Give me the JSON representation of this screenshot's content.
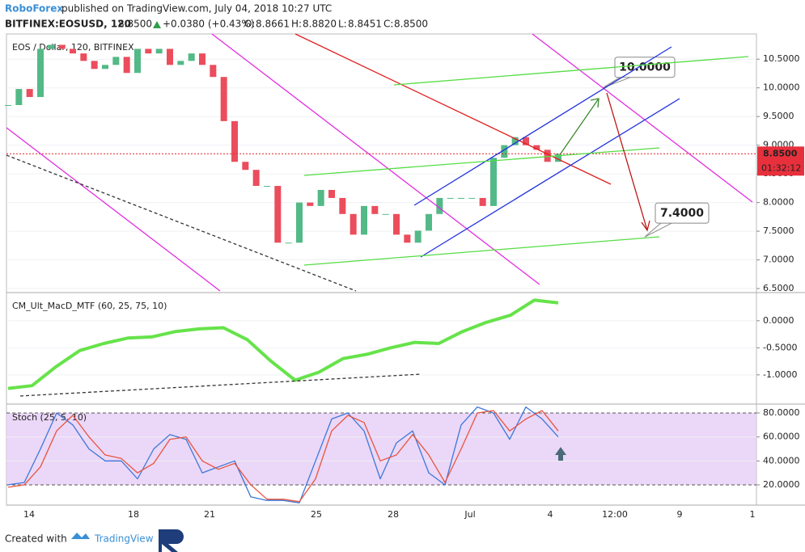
{
  "header": {
    "publisher": "RoboForex",
    "published": "published on TradingView.com, July 04, 2018 10:27 UTC"
  },
  "symbol_line": {
    "symbol": "BITFINEX:EOSUSD, 120",
    "price": "8.8500",
    "change": "+0.0380 (+0.43%)",
    "o_label": "O:",
    "open": "8.8661",
    "h_label": "H:",
    "high": "8.8820",
    "l_label": "L:",
    "low": "8.8451",
    "c_label": "C:",
    "close": "8.8500"
  },
  "chart_data": [
    {
      "type": "candlestick",
      "title": "EOS / Dollar, 120, BITFINEX",
      "values": [
        9.7,
        9.98,
        9.84,
        10.68,
        10.75,
        10.68,
        10.6,
        10.47,
        10.33,
        10.4,
        10.54,
        10.26,
        10.68,
        10.6,
        10.68,
        10.4,
        10.47,
        10.6,
        10.4,
        10.19,
        9.42,
        8.71,
        8.57,
        8.29,
        8.29,
        7.3,
        7.3,
        8.0,
        7.94,
        8.22,
        8.08,
        7.8,
        7.44,
        7.94,
        7.8,
        7.8,
        7.44,
        7.3,
        7.51,
        7.8,
        8.08,
        8.08,
        8.08,
        8.08,
        7.94,
        8.78,
        9.0,
        9.14,
        9.0,
        8.92,
        8.71,
        8.85
      ],
      "up_color": "#53b987",
      "down_color": "#eb4d5c",
      "ylim": [
        6.43,
        10.94
      ],
      "yticks": [
        {
          "value": 6.5,
          "label": "6.5000"
        },
        {
          "value": 7,
          "label": "7.0000"
        },
        {
          "value": 7.5,
          "label": "7.5000"
        },
        {
          "value": 8,
          "label": "8.0000"
        },
        {
          "value": 8.5,
          "label": "8.5000"
        },
        {
          "value": 9,
          "label": "9.0000"
        },
        {
          "value": 9.5,
          "label": "9.5000"
        },
        {
          "value": 10,
          "label": "10.0000"
        },
        {
          "value": 10.5,
          "label": "10.5000"
        }
      ],
      "last_price": {
        "value": 8.85,
        "label": "8.8500"
      },
      "countdown": "01:32:12",
      "annotations": [
        {
          "value": 10,
          "label": "10.0000",
          "color": "#3d8a2e"
        },
        {
          "value": 7.4,
          "label": "7.4000",
          "color": "#e02020"
        }
      ],
      "grid": true
    },
    {
      "type": "line",
      "title": "CM_Ult_MacD_MTF (60, 25, 75, 10)",
      "values": [
        -1.25,
        -1.2,
        -0.85,
        -0.55,
        -0.42,
        -0.32,
        -0.3,
        -0.2,
        -0.15,
        -0.13,
        -0.35,
        -0.75,
        -1.1,
        -0.95,
        -0.7,
        -0.62,
        -0.5,
        -0.4,
        -0.42,
        -0.2,
        -0.03,
        0.1,
        0.38,
        0.33
      ],
      "color": "#66e34a",
      "ylim": [
        -1.54,
        0.52
      ],
      "yticks": [
        {
          "value": -1,
          "label": "-1.0000"
        },
        {
          "value": -0.5,
          "label": "-0.5000"
        },
        {
          "value": 0,
          "label": "0.0000"
        }
      ],
      "grid": true
    },
    {
      "type": "line",
      "title": "Stoch (25, 5, 10)",
      "series": [
        {
          "color": "#3c78d8",
          "values": [
            20,
            22,
            50,
            80,
            70,
            50,
            40,
            40,
            25,
            50,
            62,
            58,
            30,
            35,
            40,
            10,
            7,
            7,
            5,
            40,
            75,
            80,
            65,
            25,
            55,
            65,
            30,
            20,
            70,
            85,
            80,
            58,
            85,
            75,
            60
          ]
        },
        {
          "color": "#e8553e",
          "values": [
            18,
            20,
            35,
            65,
            78,
            60,
            45,
            42,
            30,
            38,
            58,
            60,
            40,
            33,
            38,
            20,
            8,
            8,
            6,
            25,
            65,
            78,
            72,
            40,
            45,
            62,
            45,
            22,
            50,
            80,
            82,
            65,
            75,
            82,
            65
          ]
        }
      ],
      "band_color": "#e6cdf6",
      "ylim": [
        3.1,
        87.4
      ],
      "yticks": [
        {
          "value": 20,
          "label": "20.0000"
        },
        {
          "value": 40,
          "label": "40.0000"
        },
        {
          "value": 60,
          "label": "60.0000"
        },
        {
          "value": 80,
          "label": "80.0000"
        }
      ],
      "grid": true
    }
  ],
  "x_axis_labels": [
    "14",
    "18",
    "21",
    "25",
    "28",
    "Jul",
    "4",
    "12:00",
    "9",
    "1"
  ],
  "footer": {
    "created": "Created with",
    "brand": "TradingView"
  }
}
